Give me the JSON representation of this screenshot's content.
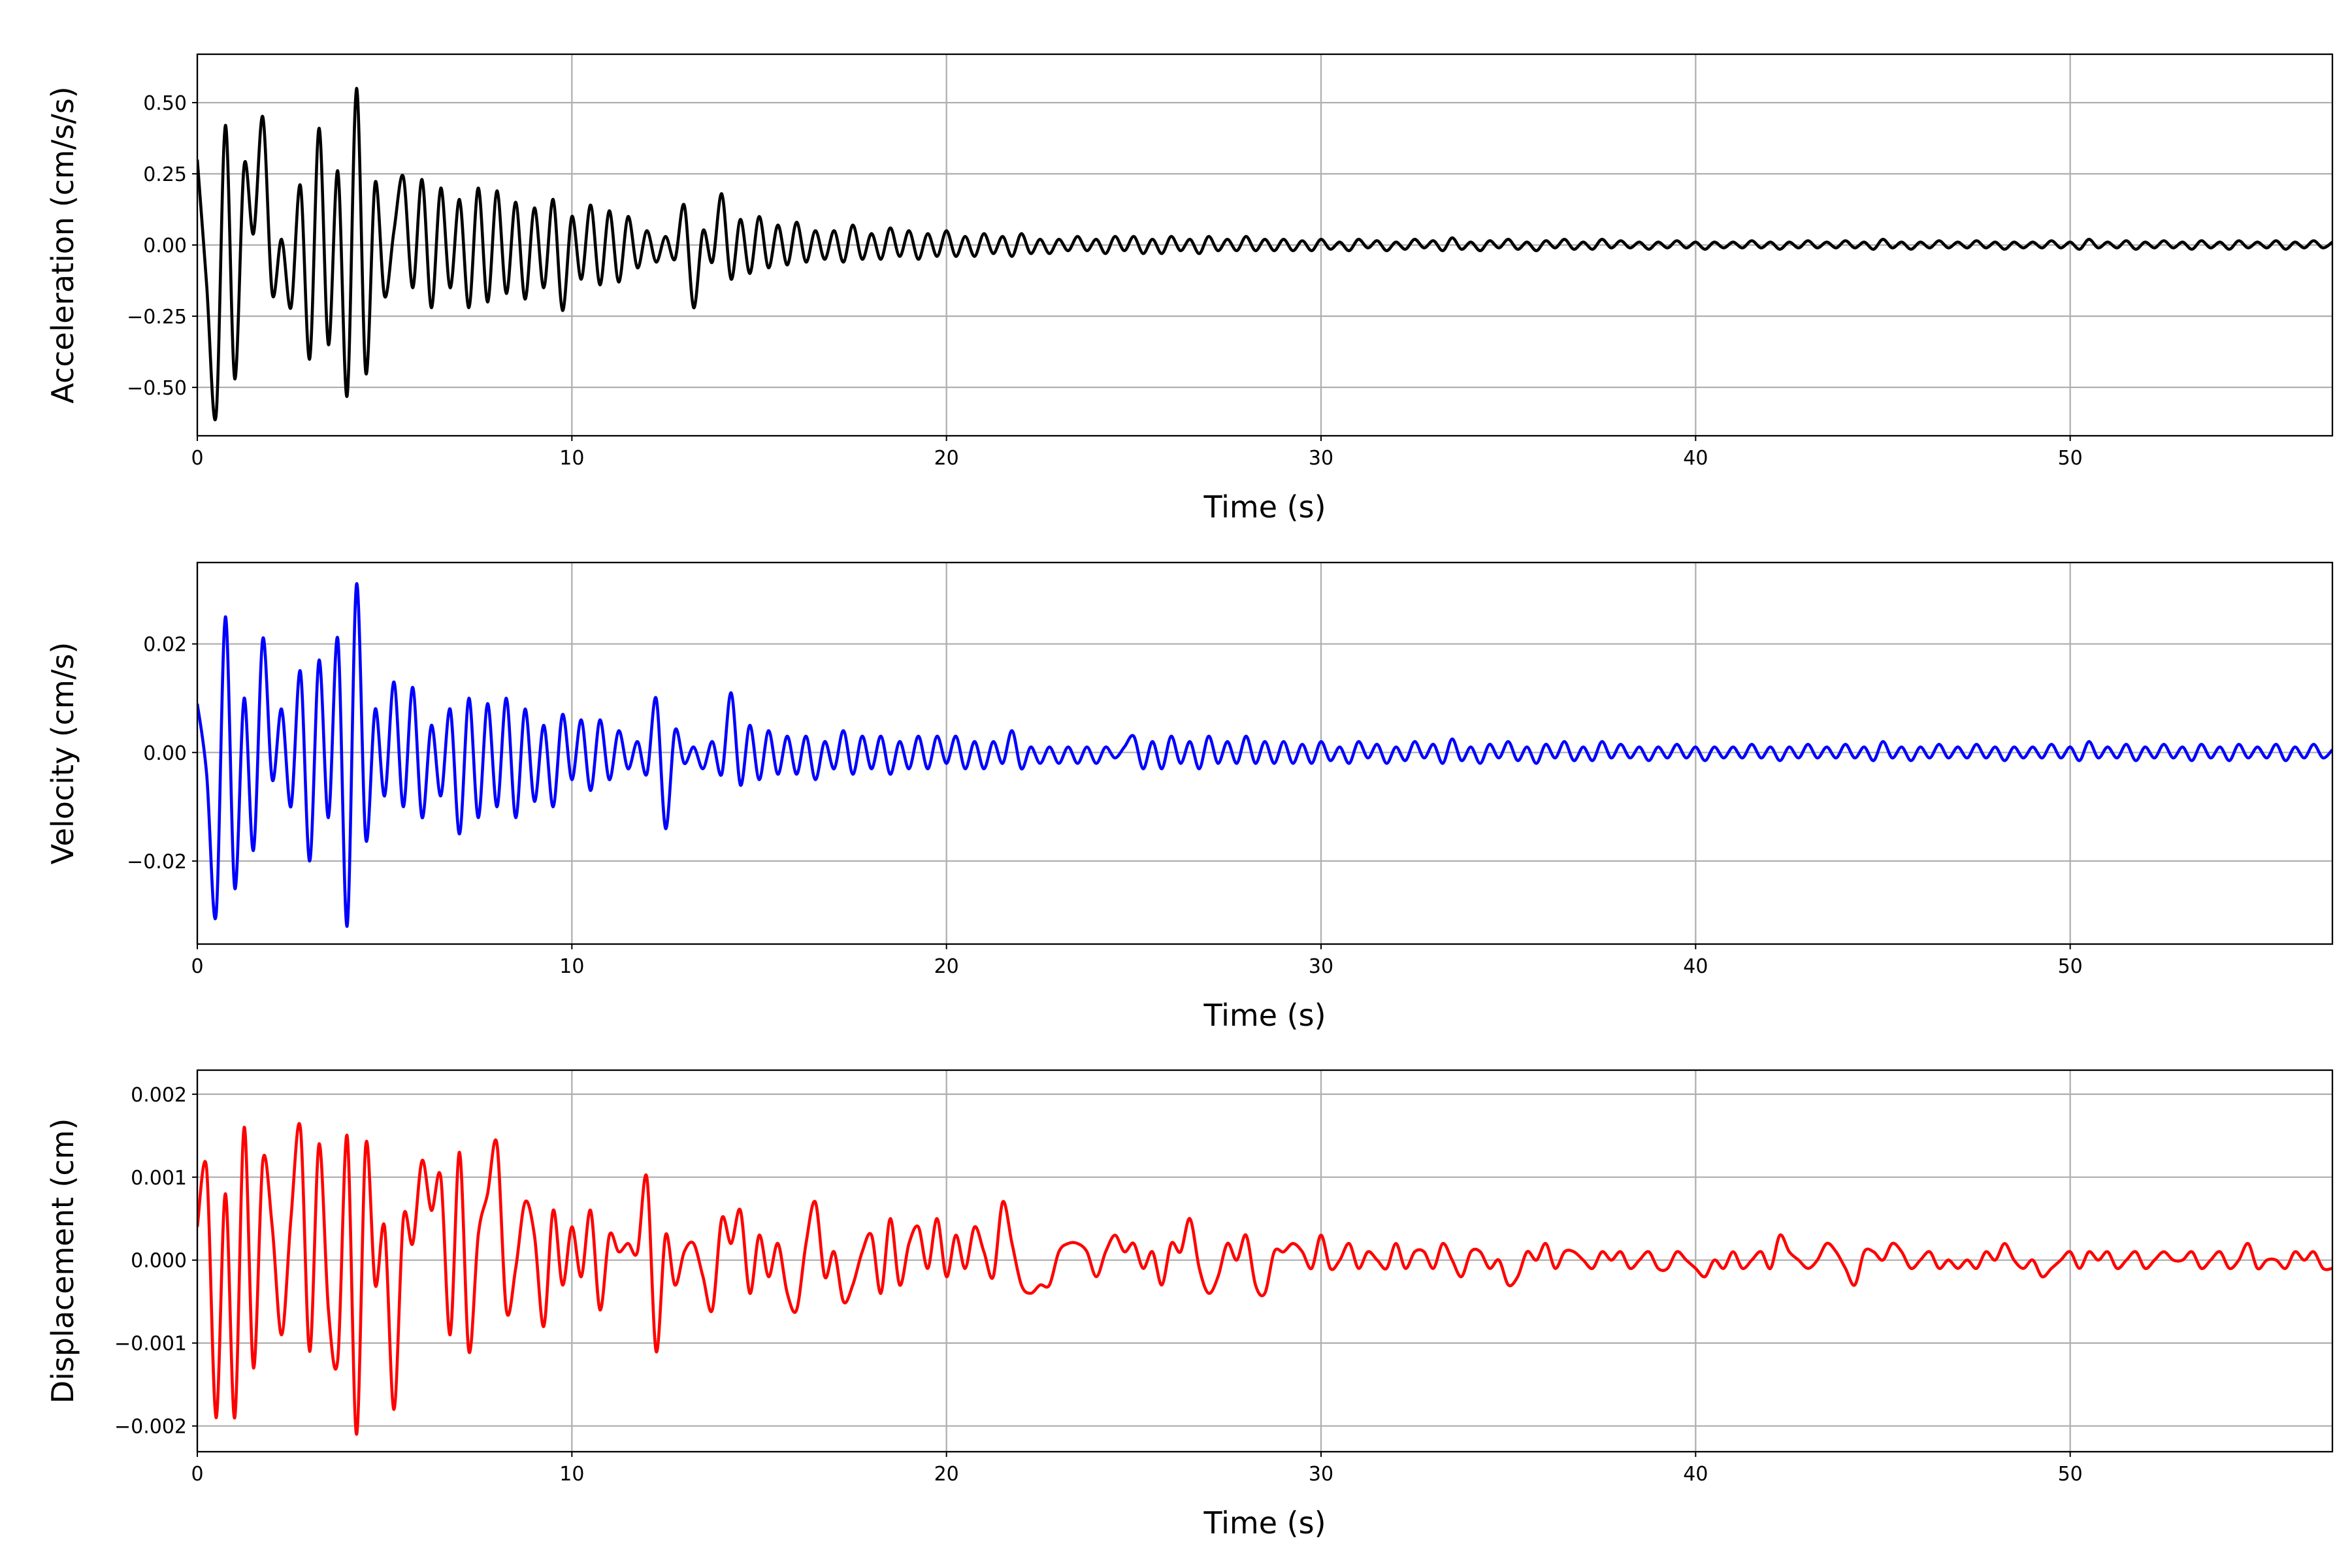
{
  "chart_data": [
    {
      "type": "line",
      "xlabel": "Time (s)",
      "ylabel": "Acceleration (cm/s/s)",
      "xlim": [
        0,
        57
      ],
      "ylim": [
        -0.67,
        0.67
      ],
      "xticks": [
        0,
        10,
        20,
        30,
        40,
        50
      ],
      "xticklabels": [
        "0",
        "10",
        "20",
        "30",
        "40",
        "50"
      ],
      "yticks": [
        -0.5,
        -0.25,
        0,
        0.25,
        0.5
      ],
      "yticklabels": [
        "−0.50",
        "−0.25",
        "0.00",
        "0.25",
        "0.50"
      ],
      "grid": true,
      "color": "#000000",
      "series": [
        {
          "name": "acceleration",
          "t0": 0,
          "dt": 0.25,
          "values": [
            0.3,
            -0.14,
            -0.6,
            0.42,
            -0.47,
            0.28,
            0.04,
            0.45,
            -0.17,
            0.02,
            -0.22,
            0.21,
            -0.4,
            0.41,
            -0.35,
            0.26,
            -0.53,
            0.55,
            -0.45,
            0.22,
            -0.18,
            0.05,
            0.24,
            -0.15,
            0.23,
            -0.22,
            0.2,
            -0.15,
            0.16,
            -0.22,
            0.2,
            -0.2,
            0.19,
            -0.17,
            0.15,
            -0.19,
            0.13,
            -0.15,
            0.16,
            -0.23,
            0.1,
            -0.12,
            0.14,
            -0.14,
            0.12,
            -0.13,
            0.1,
            -0.08,
            0.05,
            -0.06,
            0.03,
            -0.05,
            0.14,
            -0.22,
            0.05,
            -0.06,
            0.18,
            -0.12,
            0.09,
            -0.1,
            0.1,
            -0.08,
            0.07,
            -0.07,
            0.08,
            -0.06,
            0.05,
            -0.05,
            0.05,
            -0.06,
            0.07,
            -0.05,
            0.04,
            -0.05,
            0.06,
            -0.04,
            0.05,
            -0.05,
            0.04,
            -0.04,
            0.05,
            -0.04,
            0.03,
            -0.04,
            0.04,
            -0.03,
            0.03,
            -0.04,
            0.04,
            -0.03,
            0.02,
            -0.03,
            0.02,
            -0.02,
            0.03,
            -0.02,
            0.02,
            -0.03,
            0.03,
            -0.02,
            0.03,
            -0.03,
            0.02,
            -0.03,
            0.03,
            -0.02,
            0.02,
            -0.03,
            0.03,
            -0.02,
            0.02,
            -0.02,
            0.03,
            -0.02,
            0.02,
            -0.02,
            0.02,
            -0.02,
            0.015,
            -0.02,
            0.02,
            -0.015,
            0.01,
            -0.02,
            0.02,
            -0.01,
            0.015,
            -0.02,
            0.01,
            -0.015,
            0.02,
            -0.01,
            0.015,
            -0.02,
            0.025,
            -0.015,
            0.01,
            -0.02,
            0.015,
            -0.01,
            0.02,
            -0.015,
            0.01,
            -0.02,
            0.015,
            -0.01,
            0.02,
            -0.015,
            0.01,
            -0.015,
            0.02,
            -0.01,
            0.015,
            -0.01,
            0.01,
            -0.015,
            0.01,
            -0.01,
            0.015,
            -0.01,
            0.01,
            -0.015,
            0.01,
            -0.01,
            0.01,
            -0.01,
            0.015,
            -0.01,
            0.01,
            -0.015,
            0.01,
            -0.01,
            0.015,
            -0.01,
            0.01,
            -0.01,
            0.015,
            -0.01,
            0.01,
            -0.015,
            0.02,
            -0.01,
            0.01,
            -0.015,
            0.01,
            -0.01,
            0.015,
            -0.01,
            0.01,
            -0.01,
            0.015,
            -0.01,
            0.01,
            -0.015,
            0.01,
            -0.01,
            0.01,
            -0.01,
            0.015,
            -0.01,
            0.01,
            -0.015,
            0.02,
            -0.01,
            0.01,
            -0.01,
            0.015,
            -0.015,
            0.01,
            -0.01,
            0.015,
            -0.01,
            0.01,
            -0.015,
            0.015,
            -0.01,
            0.01,
            -0.015,
            0.015,
            -0.01,
            0.01,
            -0.01,
            0.015,
            -0.015,
            0.01,
            -0.01,
            0.015,
            -0.01,
            0.01
          ]
        }
      ]
    },
    {
      "type": "line",
      "xlabel": "Time (s)",
      "ylabel": "Velocity (cm/s)",
      "xlim": [
        0,
        57
      ],
      "ylim": [
        -0.0353,
        0.035
      ],
      "xticks": [
        0,
        10,
        20,
        30,
        40,
        50
      ],
      "xticklabels": [
        "0",
        "10",
        "20",
        "30",
        "40",
        "50"
      ],
      "yticks": [
        -0.02,
        0,
        0.02
      ],
      "yticklabels": [
        "−0.02",
        "0.00",
        "0.02"
      ],
      "grid": true,
      "color": "#0000ff",
      "series": [
        {
          "name": "velocity",
          "t0": 0,
          "dt": 0.25,
          "values": [
            0.009,
            -0.004,
            -0.03,
            0.025,
            -0.025,
            0.01,
            -0.018,
            0.021,
            -0.005,
            0.008,
            -0.01,
            0.015,
            -0.02,
            0.017,
            -0.012,
            0.021,
            -0.032,
            0.031,
            -0.016,
            0.008,
            -0.008,
            0.013,
            -0.01,
            0.012,
            -0.012,
            0.005,
            -0.008,
            0.008,
            -0.015,
            0.01,
            -0.012,
            0.009,
            -0.01,
            0.01,
            -0.012,
            0.008,
            -0.009,
            0.005,
            -0.01,
            0.007,
            -0.005,
            0.006,
            -0.007,
            0.006,
            -0.005,
            0.004,
            -0.003,
            0.002,
            -0.004,
            0.01,
            -0.014,
            0.004,
            -0.002,
            0.001,
            -0.003,
            0.002,
            -0.004,
            0.011,
            -0.006,
            0.005,
            -0.005,
            0.004,
            -0.004,
            0.003,
            -0.004,
            0.003,
            -0.005,
            0.002,
            -0.003,
            0.004,
            -0.004,
            0.003,
            -0.003,
            0.003,
            -0.004,
            0.002,
            -0.003,
            0.003,
            -0.003,
            0.003,
            -0.002,
            0.003,
            -0.003,
            0.002,
            -0.003,
            0.002,
            -0.002,
            0.004,
            -0.003,
            0.001,
            -0.002,
            0.001,
            -0.002,
            0.001,
            -0.002,
            0.001,
            -0.002,
            0.001,
            -0.001,
            0.001,
            0.003,
            -0.003,
            0.002,
            -0.003,
            0.003,
            -0.002,
            0.002,
            -0.003,
            0.003,
            -0.002,
            0.002,
            -0.002,
            0.003,
            -0.002,
            0.002,
            -0.002,
            0.002,
            -0.002,
            0.0015,
            -0.002,
            0.002,
            -0.0015,
            0.001,
            -0.002,
            0.002,
            -0.001,
            0.0015,
            -0.002,
            0.001,
            -0.0015,
            0.002,
            -0.001,
            0.0015,
            -0.002,
            0.0025,
            -0.0015,
            0.001,
            -0.002,
            0.0015,
            -0.001,
            0.002,
            -0.0015,
            0.001,
            -0.002,
            0.0015,
            -0.001,
            0.002,
            -0.0015,
            0.001,
            -0.0015,
            0.002,
            -0.001,
            0.0015,
            -0.001,
            0.001,
            -0.0015,
            0.001,
            -0.001,
            0.0015,
            -0.001,
            0.001,
            -0.0015,
            0.001,
            -0.001,
            0.001,
            -0.001,
            0.0015,
            -0.001,
            0.001,
            -0.0015,
            0.001,
            -0.001,
            0.0015,
            -0.001,
            0.001,
            -0.001,
            0.0015,
            -0.001,
            0.001,
            -0.0015,
            0.002,
            -0.001,
            0.001,
            -0.0015,
            0.001,
            -0.001,
            0.0015,
            -0.001,
            0.001,
            -0.001,
            0.0015,
            -0.001,
            0.001,
            -0.0015,
            0.001,
            -0.001,
            0.001,
            -0.001,
            0.0015,
            -0.001,
            0.001,
            -0.0015,
            0.002,
            -0.001,
            0.001,
            -0.001,
            0.0015,
            -0.0015,
            0.001,
            -0.001,
            0.0015,
            -0.001,
            0.001,
            -0.0015,
            0.0015,
            -0.001,
            0.001,
            -0.0015,
            0.0015,
            -0.001,
            0.001,
            -0.001,
            0.0015,
            -0.0015,
            0.001,
            -0.001,
            0.0015,
            -0.001,
            0.0005
          ]
        }
      ]
    },
    {
      "type": "line",
      "xlabel": "Time (s)",
      "ylabel": "Displacement (cm)",
      "xlim": [
        0,
        57
      ],
      "ylim": [
        -0.00231,
        0.00229
      ],
      "xticks": [
        0,
        10,
        20,
        30,
        40,
        50
      ],
      "xticklabels": [
        "0",
        "10",
        "20",
        "30",
        "40",
        "50"
      ],
      "yticks": [
        -0.002,
        -0.001,
        0,
        0.001,
        0.002
      ],
      "yticklabels": [
        "−0.002",
        "−0.001",
        "0.000",
        "0.001",
        "0.002"
      ],
      "grid": true,
      "color": "#ff0000",
      "series": [
        {
          "name": "displacement",
          "t0": 0,
          "dt": 0.25,
          "values": [
            0.0004,
            0.0011,
            -0.0019,
            0.0008,
            -0.0019,
            0.0016,
            -0.0013,
            0.0012,
            0.0004,
            -0.0009,
            0.0005,
            0.0016,
            -0.0011,
            0.0014,
            -0.0006,
            -0.0012,
            0.0015,
            -0.0021,
            0.0014,
            -0.0003,
            0.0004,
            -0.0018,
            0.0005,
            0.0002,
            0.0012,
            0.0006,
            0.001,
            -0.0009,
            0.0013,
            -0.0011,
            0.0003,
            0.0008,
            0.0014,
            -0.0006,
            -0.0001,
            0.0007,
            0.0003,
            -0.0008,
            0.0006,
            -0.0003,
            0.0004,
            -0.0002,
            0.0006,
            -0.0006,
            0.0003,
            0.0001,
            0.0002,
            0.0001,
            0.001,
            -0.0011,
            0.0003,
            -0.0003,
            0.0001,
            0.0002,
            -0.0002,
            -0.0006,
            0.0005,
            0.0002,
            0.0006,
            -0.0004,
            0.0003,
            -0.0002,
            0.0002,
            -0.0004,
            -0.0006,
            0.0002,
            0.0007,
            -0.0002,
            0.0001,
            -0.0005,
            -0.0003,
            0.0001,
            0.0003,
            -0.0004,
            0.0005,
            -0.0003,
            0.0002,
            0.0004,
            -0.0001,
            0.0005,
            -0.0002,
            0.0003,
            -0.0001,
            0.0004,
            0.0001,
            -0.0002,
            0.0007,
            0.0002,
            -0.0003,
            -0.0004,
            -0.0003,
            -0.0003,
            0.0001,
            0.0002,
            0.0002,
            0.0001,
            -0.0002,
            0.0001,
            0.0003,
            0.0001,
            0.0002,
            -0.0001,
            0.0001,
            -0.0003,
            0.0002,
            0.0001,
            0.0005,
            -0.0001,
            -0.0004,
            -0.0002,
            0.0002,
            0.0,
            0.0003,
            -0.0003,
            -0.0004,
            0.0001,
            0.0001,
            0.0002,
            0.0001,
            -0.0001,
            0.0003,
            -0.0001,
            0.0,
            0.0002,
            -0.0001,
            0.0001,
            0.0,
            -0.0001,
            0.0002,
            -0.0001,
            0.0001,
            0.0001,
            -0.0001,
            0.0002,
            0.0,
            -0.0002,
            0.0001,
            0.0001,
            -0.0001,
            0.0,
            -0.0003,
            -0.0002,
            0.0001,
            0.0,
            0.0002,
            -0.0001,
            0.0001,
            0.0001,
            0.0,
            -0.0001,
            0.0001,
            0.0,
            0.0001,
            -0.0001,
            0.0,
            0.0001,
            -0.0001,
            -0.0001,
            0.0001,
            0.0,
            -0.0001,
            -0.0002,
            0.0,
            -0.0001,
            0.0001,
            -0.0001,
            0.0,
            0.0001,
            -0.0001,
            0.0003,
            0.0001,
            0.0,
            -0.0001,
            0.0,
            0.0002,
            0.0001,
            -0.0001,
            -0.0003,
            0.0001,
            0.0001,
            0.0,
            0.0002,
            0.0001,
            -0.0001,
            0.0,
            0.0001,
            -0.0001,
            0.0,
            -0.0001,
            0.0,
            -0.0001,
            0.0001,
            0.0,
            0.0002,
            0.0,
            -0.0001,
            0.0,
            -0.0002,
            -0.0001,
            0.0,
            0.0001,
            -0.0001,
            0.0001,
            0.0,
            0.0001,
            -0.0001,
            0.0,
            0.0001,
            -0.0001,
            0.0,
            0.0001,
            0.0,
            0.0,
            0.0001,
            -0.0001,
            0.0,
            0.0001,
            -0.0001,
            0.0,
            0.0002,
            -0.0001,
            0.0,
            0.0,
            -0.0001,
            0.0001,
            0.0,
            0.0001,
            -0.0001,
            -0.0001
          ]
        }
      ]
    }
  ]
}
